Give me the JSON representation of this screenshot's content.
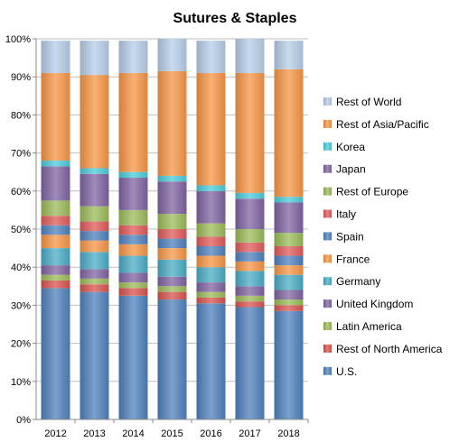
{
  "chart_data": {
    "type": "bar",
    "stacked": true,
    "normalized": true,
    "title": "Sutures & Staples",
    "xlabel": "",
    "ylabel": "",
    "ylim": [
      0,
      100
    ],
    "yticks": [
      "0%",
      "10%",
      "20%",
      "30%",
      "40%",
      "50%",
      "60%",
      "70%",
      "80%",
      "90%",
      "100%"
    ],
    "grid": true,
    "legend_position": "right",
    "categories": [
      "2012",
      "2013",
      "2014",
      "2015",
      "2016",
      "2017",
      "2018"
    ],
    "series": [
      {
        "name": "U.S.",
        "color": "#4f81bd",
        "values": [
          34.5,
          33.5,
          32.5,
          31.5,
          30.5,
          29.5,
          28.5
        ]
      },
      {
        "name": "Rest of North America",
        "color": "#d9534f",
        "values": [
          2.0,
          2.0,
          2.0,
          2.0,
          1.5,
          1.5,
          1.5
        ]
      },
      {
        "name": "Latin America",
        "color": "#9bbb59",
        "values": [
          1.5,
          1.5,
          1.5,
          1.5,
          1.5,
          1.5,
          1.5
        ]
      },
      {
        "name": "United Kingdom",
        "color": "#8064a2",
        "values": [
          2.5,
          2.5,
          2.5,
          2.5,
          2.5,
          2.5,
          2.5
        ]
      },
      {
        "name": "Germany",
        "color": "#4bacc6",
        "values": [
          4.5,
          4.5,
          4.5,
          4.5,
          4.0,
          4.0,
          4.0
        ]
      },
      {
        "name": "France",
        "color": "#f79646",
        "values": [
          3.5,
          3.0,
          3.0,
          3.0,
          3.0,
          2.5,
          2.5
        ]
      },
      {
        "name": "Spain",
        "color": "#4f81bd",
        "values": [
          2.5,
          2.5,
          2.5,
          2.5,
          2.5,
          2.5,
          2.5
        ]
      },
      {
        "name": "Italy",
        "color": "#e05a5a",
        "values": [
          2.5,
          2.5,
          2.5,
          2.5,
          2.5,
          2.5,
          2.5
        ]
      },
      {
        "name": "Rest of Europe",
        "color": "#9bbb59",
        "values": [
          4.0,
          4.0,
          4.0,
          4.0,
          3.5,
          3.5,
          3.5
        ]
      },
      {
        "name": "Japan",
        "color": "#8064a2",
        "values": [
          9.0,
          8.5,
          8.5,
          8.5,
          8.5,
          8.0,
          8.0
        ]
      },
      {
        "name": "Korea",
        "color": "#4bcbd9",
        "values": [
          1.5,
          1.5,
          1.5,
          1.5,
          1.5,
          1.5,
          1.5
        ]
      },
      {
        "name": "Rest of Asia/Pacific",
        "color": "#f79646",
        "values": [
          23.0,
          24.5,
          26.0,
          27.5,
          29.5,
          31.5,
          33.5
        ]
      },
      {
        "name": "Rest of World",
        "color": "#b7cde8",
        "values": [
          8.5,
          9.0,
          8.5,
          8.5,
          8.5,
          9.0,
          7.5
        ]
      }
    ]
  }
}
